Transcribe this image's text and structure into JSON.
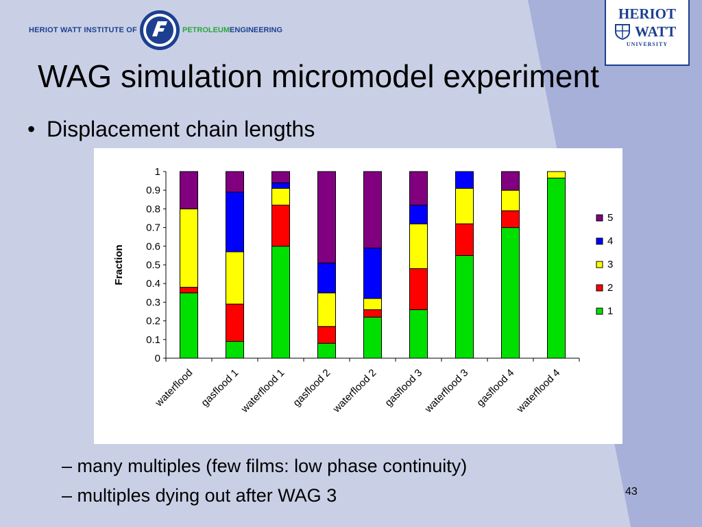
{
  "header": {
    "institute_left": "HERIOT WATT INSTITUTE OF",
    "institute_right_green": "PETROLEUM",
    "institute_right_blue": "ENGINEERING",
    "university_line1": "HERIOT",
    "university_line2": "WATT",
    "university_line3": "UNIVERSITY"
  },
  "slide": {
    "title": "WAG simulation micromodel experiment",
    "bullet_symbol": "•",
    "bullet": "Displacement chain lengths",
    "sub_symbol": "–",
    "sub_bullets": [
      "many multiples (few films: low phase continuity)",
      "multiples dying out after WAG 3"
    ],
    "page_number": "43"
  },
  "colors": {
    "background": "#c9d0e6",
    "series_1": "#00e000",
    "series_2": "#ff0000",
    "series_3": "#ffff00",
    "series_4": "#0000ff",
    "series_5": "#800080"
  },
  "chart_data": {
    "type": "bar",
    "stacked": true,
    "ylabel": "Fraction",
    "xlabel": "",
    "ylim": [
      0,
      1
    ],
    "yticks": [
      "0",
      "0.1",
      "0.2",
      "0.3",
      "0.4",
      "0.5",
      "0.6",
      "0.7",
      "0.8",
      "0.9",
      "1"
    ],
    "grid": false,
    "legend_position": "right",
    "categories": [
      "waterflood",
      "gasflood 1",
      "waterflood 1",
      "gasflood 2",
      "waterflood 2",
      "gasflood 3",
      "waterflood 3",
      "gasflood 4",
      "waterflood 4"
    ],
    "series": [
      {
        "name": "1",
        "color": "#00e000",
        "values": [
          0.35,
          0.09,
          0.6,
          0.08,
          0.22,
          0.26,
          0.55,
          0.7,
          0.965
        ]
      },
      {
        "name": "2",
        "color": "#ff0000",
        "values": [
          0.03,
          0.2,
          0.22,
          0.09,
          0.04,
          0.22,
          0.17,
          0.09,
          0.0
        ]
      },
      {
        "name": "3",
        "color": "#ffff00",
        "values": [
          0.42,
          0.28,
          0.09,
          0.18,
          0.06,
          0.24,
          0.19,
          0.11,
          0.035
        ]
      },
      {
        "name": "4",
        "color": "#0000ff",
        "values": [
          0.0,
          0.32,
          0.03,
          0.16,
          0.27,
          0.1,
          0.09,
          0.0,
          0.0
        ]
      },
      {
        "name": "5",
        "color": "#800080",
        "values": [
          0.2,
          0.11,
          0.06,
          0.49,
          0.41,
          0.18,
          0.0,
          0.1,
          0.0
        ]
      }
    ]
  }
}
